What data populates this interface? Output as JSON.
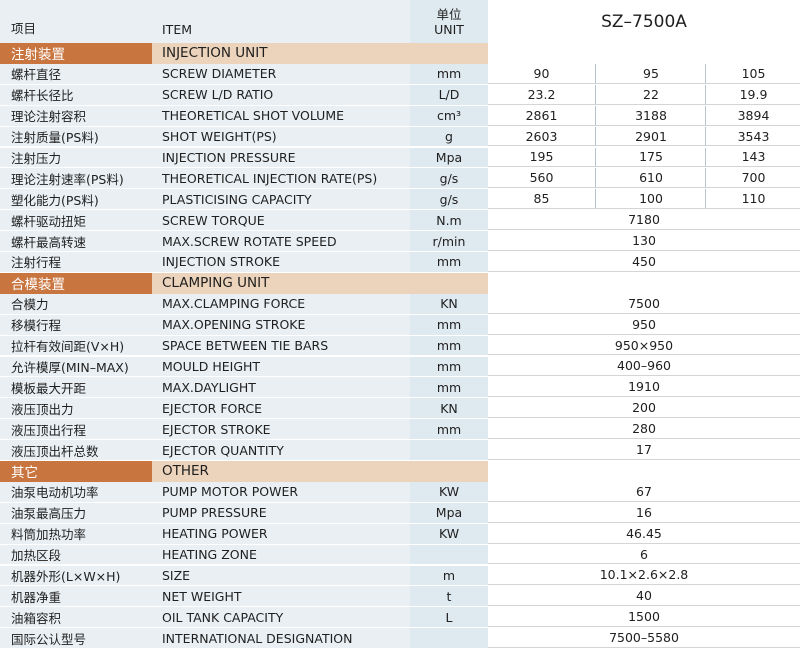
{
  "header": {
    "item_cn": "项目",
    "item_en": "ITEM",
    "unit_cn": "单位",
    "unit_en": "UNIT",
    "model": "SZ–7500A"
  },
  "sections": [
    {
      "title_cn": "注射装置",
      "title_en": "INJECTION UNIT",
      "rows": [
        {
          "cn": "螺杆直径",
          "en": "SCREW DIAMETER",
          "unit": "mm",
          "values": [
            "90",
            "95",
            "105"
          ]
        },
        {
          "cn": "螺杆长径比",
          "en": "SCREW L/D RATIO",
          "unit": "L/D",
          "values": [
            "23.2",
            "22",
            "19.9"
          ]
        },
        {
          "cn": "理论注射容积",
          "en": "THEORETICAL SHOT VOLUME",
          "unit": "cm³",
          "values": [
            "2861",
            "3188",
            "3894"
          ]
        },
        {
          "cn": "注射质量(PS料)",
          "en": "SHOT WEIGHT(PS)",
          "unit": "g",
          "values": [
            "2603",
            "2901",
            "3543"
          ]
        },
        {
          "cn": "注射压力",
          "en": " INJECTION PRESSURE",
          "unit": "Mpa",
          "values": [
            "195",
            "175",
            "143"
          ]
        },
        {
          "cn": "理论注射速率(PS料)",
          "en": "THEORETICAL INJECTION RATE(PS)",
          "unit": "g/s",
          "values": [
            "560",
            "610",
            "700"
          ]
        },
        {
          "cn": "塑化能力(PS料)",
          "en": "PLASTICISING CAPACITY",
          "unit": "g/s",
          "values": [
            "85",
            "100",
            "110"
          ]
        },
        {
          "cn": "螺杆驱动扭矩",
          "en": "SCREW TORQUE",
          "unit": "N.m",
          "values": [
            "7180"
          ]
        },
        {
          "cn": "螺杆最高转速",
          "en": " MAX.SCREW ROTATE SPEED",
          "unit": "r/min",
          "values": [
            "130"
          ]
        },
        {
          "cn": "注射行程",
          "en": "INJECTION STROKE",
          "unit": "mm",
          "values": [
            "450"
          ]
        }
      ]
    },
    {
      "title_cn": "合模装置",
      "title_en": "CLAMPING UNIT",
      "rows": [
        {
          "cn": "合模力",
          "en": "MAX.CLAMPING FORCE",
          "unit": "KN",
          "values": [
            "7500"
          ]
        },
        {
          "cn": "移模行程",
          "en": "MAX.OPENING STROKE",
          "unit": "mm",
          "values": [
            "950"
          ]
        },
        {
          "cn": "拉杆有效间距(V×H)",
          "en": "SPACE BETWEEN TIE BARS",
          "unit": "mm",
          "values": [
            "950×950"
          ]
        },
        {
          "cn": "允许模厚(MIN–MAX)",
          "en": "MOULD HEIGHT",
          "unit": "mm",
          "values": [
            "400–960"
          ]
        },
        {
          "cn": "模板最大开距",
          "en": "MAX.DAYLIGHT",
          "unit": "mm",
          "values": [
            "1910"
          ]
        },
        {
          "cn": "液压顶出力",
          "en": "EJECTOR FORCE",
          "unit": "KN",
          "values": [
            "200"
          ]
        },
        {
          "cn": "液压顶出行程",
          "en": "EJECTOR STROKE",
          "unit": "mm",
          "values": [
            "280"
          ]
        },
        {
          "cn": "液压顶出杆总数",
          "en": "EJECTOR QUANTITY",
          "unit": "",
          "values": [
            "17"
          ]
        }
      ]
    },
    {
      "title_cn": "其它",
      "title_en": "OTHER",
      "rows": [
        {
          "cn": "油泵电动机功率",
          "en": "PUMP MOTOR POWER",
          "unit": "KW",
          "values": [
            "67"
          ]
        },
        {
          "cn": "油泵最高压力",
          "en": "PUMP PRESSURE",
          "unit": "Mpa",
          "values": [
            "16"
          ]
        },
        {
          "cn": "料筒加热功率",
          "en": "HEATING POWER",
          "unit": "KW",
          "values": [
            "46.45"
          ]
        },
        {
          "cn": "加热区段",
          "en": "HEATING ZONE",
          "unit": "",
          "values": [
            "6"
          ]
        },
        {
          "cn": "机器外形(L×W×H)",
          "en": "SIZE",
          "unit": "m",
          "values": [
            "10.1×2.6×2.8"
          ]
        },
        {
          "cn": "机器净重",
          "en": "NET WEIGHT",
          "unit": "t",
          "values": [
            "40"
          ]
        },
        {
          "cn": "油箱容积",
          "en": "OIL TANK CAPACITY",
          "unit": "L",
          "values": [
            "1500"
          ]
        },
        {
          "cn": "国际公认型号",
          "en": "INTERNATIONAL DESIGNATION",
          "unit": "",
          "values": [
            "7500–5580"
          ]
        }
      ]
    }
  ]
}
